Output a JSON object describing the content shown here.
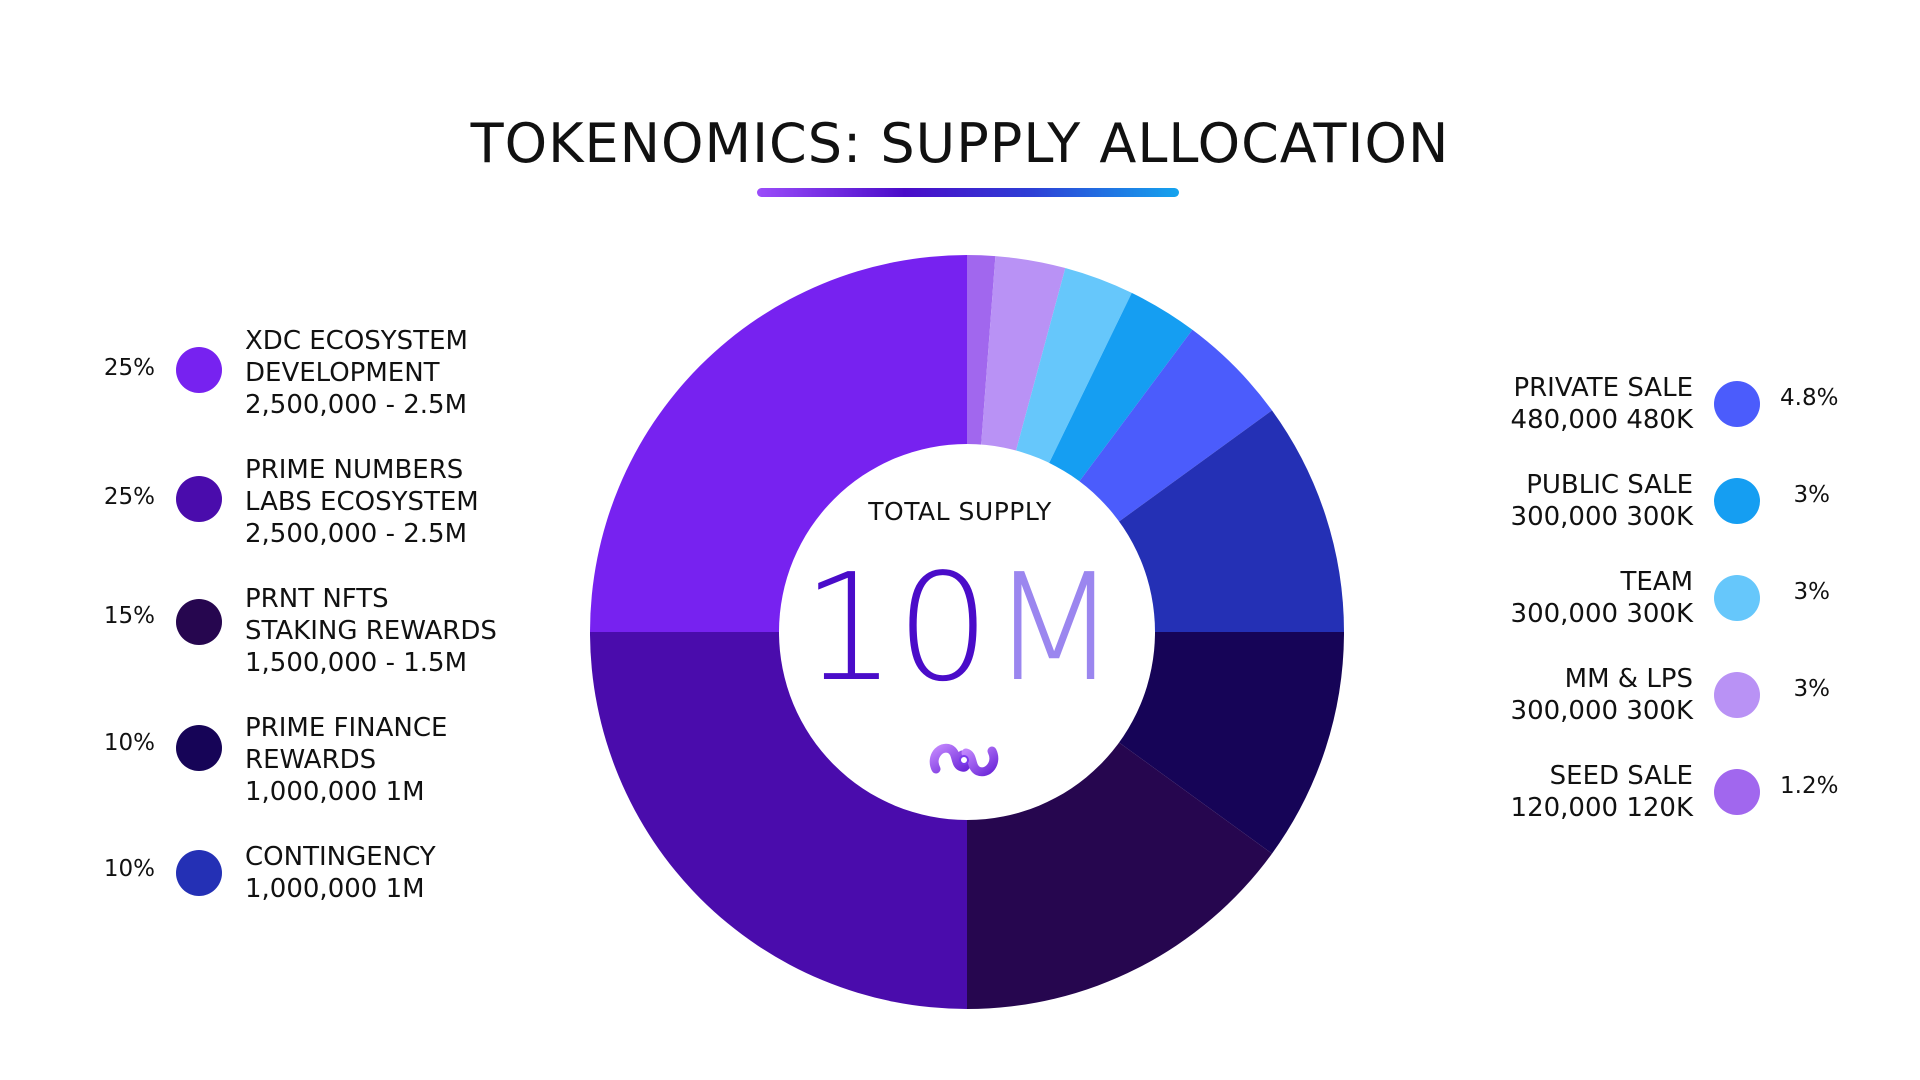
{
  "title": "TOKENOMICS: SUPPLY ALLOCATION",
  "center": {
    "label": "TOTAL SUPPLY",
    "value_number": "10",
    "value_unit": "M"
  },
  "colors": {
    "xdc": "#7722f0",
    "prime_numbers": "#4a0cac",
    "prnt": "#26064f",
    "prime_finance": "#160457",
    "contingency": "#2430b5",
    "private_sale": "#4b5cfc",
    "public_sale": "#159ef2",
    "team": "#66c7fb",
    "mm_lps": "#b992f5",
    "seed_sale": "#a167ee"
  },
  "legend_left": [
    {
      "pct": "25%",
      "lines": [
        "XDC ECOSYSTEM",
        "DEVELOPMENT",
        "2,500,000 - 2.5M"
      ],
      "color": "#7722f0"
    },
    {
      "pct": "25%",
      "lines": [
        "PRIME NUMBERS",
        "LABS ECOSYSTEM",
        "2,500,000 - 2.5M"
      ],
      "color": "#4a0cac"
    },
    {
      "pct": "15%",
      "lines": [
        "PRNT NFTS",
        "STAKING REWARDS",
        "1,500,000 - 1.5M"
      ],
      "color": "#26064f"
    },
    {
      "pct": "10%",
      "lines": [
        "PRIME FINANCE",
        "REWARDS",
        "1,000,000 1M"
      ],
      "color": "#160457"
    },
    {
      "pct": "10%",
      "lines": [
        "CONTINGENCY",
        "1,000,000 1M"
      ],
      "color": "#2430b5"
    }
  ],
  "legend_right": [
    {
      "pct": "4.8%",
      "lines": [
        "PRIVATE SALE",
        "480,000 480K"
      ],
      "color": "#4b5cfc"
    },
    {
      "pct": "3%",
      "lines": [
        "PUBLIC SALE",
        "300,000 300K"
      ],
      "color": "#159ef2"
    },
    {
      "pct": "3%",
      "lines": [
        "TEAM",
        "300,000 300K"
      ],
      "color": "#66c7fb"
    },
    {
      "pct": "3%",
      "lines": [
        "MM & LPS",
        "300,000 300K"
      ],
      "color": "#b992f5"
    },
    {
      "pct": "1.2%",
      "lines": [
        "SEED SALE",
        "120,000 120K"
      ],
      "color": "#a167ee"
    }
  ],
  "chart_data": {
    "type": "pie",
    "title": "TOKENOMICS: SUPPLY ALLOCATION",
    "total": 10000000,
    "start_at": "top",
    "direction": "clockwise",
    "slices": [
      {
        "name": "SEED SALE",
        "value": 1.2,
        "amount": 120000,
        "color": "#a167ee"
      },
      {
        "name": "MM & LPS",
        "value": 3,
        "amount": 300000,
        "color": "#b992f5"
      },
      {
        "name": "TEAM",
        "value": 3,
        "amount": 300000,
        "color": "#66c7fb"
      },
      {
        "name": "PUBLIC SALE",
        "value": 3,
        "amount": 300000,
        "color": "#159ef2"
      },
      {
        "name": "PRIVATE SALE",
        "value": 4.8,
        "amount": 480000,
        "color": "#4b5cfc"
      },
      {
        "name": "CONTINGENCY",
        "value": 10,
        "amount": 1000000,
        "color": "#2430b5"
      },
      {
        "name": "PRIME FINANCE REWARDS",
        "value": 10,
        "amount": 1000000,
        "color": "#160457"
      },
      {
        "name": "PRNT NFTS STAKING REWARDS",
        "value": 15,
        "amount": 1500000,
        "color": "#26064f"
      },
      {
        "name": "PRIME NUMBERS LABS ECOSYSTEM",
        "value": 25,
        "amount": 2500000,
        "color": "#4a0cac"
      },
      {
        "name": "XDC ECOSYSTEM DEVELOPMENT",
        "value": 25,
        "amount": 2500000,
        "color": "#7722f0"
      }
    ]
  }
}
